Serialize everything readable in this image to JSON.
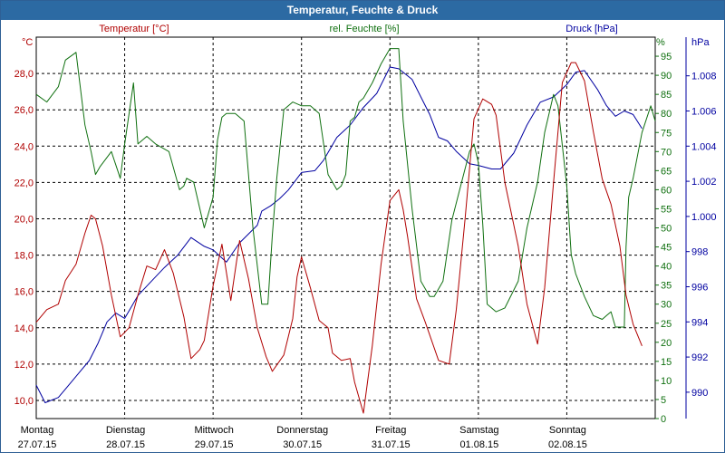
{
  "window": {
    "title": "Temperatur, Feuchte & Druck"
  },
  "colors": {
    "temperature": "#b00000",
    "humidity": "#107010",
    "pressure": "#0000a0",
    "grid": "#000000",
    "titlebar": "#2c6aa3"
  },
  "chart_data": {
    "type": "line",
    "title": "Temperatur, Feuchte & Druck",
    "grid": true,
    "days": [
      {
        "weekday": "Montag",
        "date": "27.07.15"
      },
      {
        "weekday": "Dienstag",
        "date": "28.07.15"
      },
      {
        "weekday": "Mittwoch",
        "date": "29.07.15"
      },
      {
        "weekday": "Donnerstag",
        "date": "30.07.15"
      },
      {
        "weekday": "Freitag",
        "date": "31.07.15"
      },
      {
        "weekday": "Samstag",
        "date": "01.08.15"
      },
      {
        "weekday": "Sonntag",
        "date": "02.08.15"
      }
    ],
    "x_range_days": [
      0,
      7
    ],
    "axes": {
      "temperature": {
        "label": "Temperatur [°C]",
        "unit": "°C",
        "range": [
          9,
          30
        ],
        "ticks": [
          "10,0",
          "12,0",
          "14,0",
          "16,0",
          "18,0",
          "20,0",
          "22,0",
          "24,0",
          "26,0",
          "28,0"
        ]
      },
      "humidity": {
        "label": "rel. Feuchte [%]",
        "unit": "%",
        "range": [
          0,
          100
        ],
        "ticks": [
          "0",
          "5",
          "10",
          "15",
          "20",
          "25",
          "30",
          "35",
          "40",
          "45",
          "50",
          "55",
          "60",
          "65",
          "70",
          "75",
          "80",
          "85",
          "90",
          "95"
        ]
      },
      "pressure": {
        "label": "Druck [hPa]",
        "unit": "hPa",
        "range": [
          988.5,
          1010.2
        ],
        "ticks": [
          "990",
          "992",
          "994",
          "996",
          "998",
          "1.000",
          "1.002",
          "1.004",
          "1.006",
          "1.008"
        ]
      }
    },
    "series": [
      {
        "name": "Temperatur [°C]",
        "axis": "temperature",
        "x": [
          0,
          0.12,
          0.25,
          0.33,
          0.45,
          0.55,
          0.62,
          0.67,
          0.75,
          0.85,
          0.95,
          1.05,
          1.15,
          1.25,
          1.35,
          1.45,
          1.55,
          1.67,
          1.75,
          1.85,
          1.9,
          2.0,
          2.1,
          2.2,
          2.3,
          2.4,
          2.5,
          2.6,
          2.67,
          2.8,
          2.9,
          2.95,
          3.0,
          3.1,
          3.2,
          3.3,
          3.35,
          3.45,
          3.55,
          3.6,
          3.7,
          3.8,
          3.9,
          4.0,
          4.1,
          4.15,
          4.2,
          4.3,
          4.4,
          4.55,
          4.67,
          4.75,
          4.85,
          4.95,
          5.05,
          5.15,
          5.2,
          5.3,
          5.45,
          5.55,
          5.67,
          5.75,
          5.85,
          5.95,
          6.05,
          6.1,
          6.2,
          6.3,
          6.4,
          6.5,
          6.6,
          6.67,
          6.75,
          6.85
        ],
        "y": [
          14.3,
          15.0,
          15.3,
          16.6,
          17.5,
          19.2,
          20.2,
          20.0,
          18.5,
          15.8,
          13.5,
          14.0,
          15.8,
          17.4,
          17.2,
          18.3,
          17.0,
          14.6,
          12.3,
          12.8,
          13.3,
          16.3,
          18.6,
          15.5,
          18.8,
          16.7,
          14.0,
          12.4,
          11.6,
          12.5,
          14.5,
          16.8,
          17.9,
          16.2,
          14.4,
          14.0,
          12.6,
          12.2,
          12.3,
          11.0,
          9.3,
          13.0,
          17.5,
          21.0,
          21.6,
          20.5,
          19.0,
          15.6,
          14.3,
          12.2,
          12.0,
          15.0,
          20.0,
          25.5,
          26.6,
          26.3,
          25.7,
          22.0,
          18.5,
          15.3,
          13.1,
          16.2,
          22.0,
          27.5,
          28.6,
          28.6,
          27.6,
          24.8,
          22.2,
          20.8,
          18.5,
          15.8,
          14.2,
          13.0
        ]
      },
      {
        "name": "rel. Feuchte [%]",
        "axis": "humidity",
        "x": [
          0,
          0.12,
          0.25,
          0.33,
          0.45,
          0.55,
          0.62,
          0.67,
          0.72,
          0.85,
          0.95,
          1.0,
          1.1,
          1.15,
          1.25,
          1.35,
          1.5,
          1.62,
          1.67,
          1.7,
          1.78,
          1.9,
          2.0,
          2.05,
          2.1,
          2.15,
          2.25,
          2.35,
          2.45,
          2.55,
          2.62,
          2.67,
          2.72,
          2.8,
          2.9,
          3.0,
          3.1,
          3.2,
          3.3,
          3.4,
          3.45,
          3.5,
          3.55,
          3.6,
          3.65,
          3.7,
          3.8,
          3.9,
          4.0,
          4.05,
          4.1,
          4.15,
          4.25,
          4.35,
          4.45,
          4.5,
          4.6,
          4.7,
          4.8,
          4.9,
          4.95,
          5.0,
          5.05,
          5.1,
          5.2,
          5.3,
          5.45,
          5.55,
          5.67,
          5.75,
          5.85,
          5.9,
          6.0,
          6.05,
          6.1,
          6.2,
          6.3,
          6.4,
          6.45,
          6.5,
          6.55,
          6.65,
          6.67,
          6.7,
          6.75,
          6.85,
          6.95,
          7.0
        ],
        "y": [
          85,
          83,
          87,
          94,
          96,
          77,
          70,
          64,
          66,
          70,
          63,
          72,
          88,
          72,
          74,
          72,
          70,
          60,
          61,
          63,
          62,
          50,
          58,
          73,
          79,
          80,
          80,
          78,
          50,
          30,
          30,
          48,
          63,
          81,
          83,
          82,
          82,
          80,
          64,
          60,
          61,
          64,
          78,
          79,
          83,
          84,
          88,
          93,
          97,
          97,
          97,
          78,
          55,
          36,
          32,
          32,
          36,
          52,
          61,
          70,
          72,
          67,
          51,
          30,
          28,
          29,
          36,
          50,
          62,
          75,
          85,
          82,
          61,
          43,
          38,
          32,
          27,
          26,
          27,
          28,
          24,
          24,
          45,
          58,
          63,
          75,
          82,
          78
        ]
      },
      {
        "name": "Druck [hPa]",
        "axis": "pressure",
        "x": [
          0,
          0.1,
          0.25,
          0.35,
          0.5,
          0.6,
          0.7,
          0.8,
          0.9,
          1.0,
          1.15,
          1.3,
          1.45,
          1.6,
          1.75,
          1.9,
          2.0,
          2.15,
          2.3,
          2.5,
          2.55,
          2.65,
          2.75,
          2.85,
          3.0,
          3.15,
          3.25,
          3.4,
          3.55,
          3.7,
          3.85,
          4.0,
          4.1,
          4.25,
          4.35,
          4.45,
          4.55,
          4.65,
          4.75,
          4.9,
          5.0,
          5.15,
          5.25,
          5.4,
          5.55,
          5.7,
          5.85,
          6.0,
          6.1,
          6.2,
          6.35,
          6.45,
          6.55,
          6.65,
          6.75,
          6.85
        ],
        "y": [
          990.4,
          989.4,
          989.7,
          990.3,
          991.2,
          991.8,
          992.8,
          994.0,
          994.5,
          994.2,
          995.5,
          996.3,
          997.1,
          997.8,
          998.8,
          998.3,
          998.1,
          997.4,
          998.5,
          999.5,
          1000.3,
          1000.6,
          1001.0,
          1001.5,
          1002.5,
          1002.6,
          1003.2,
          1004.5,
          1005.2,
          1006.2,
          1007.0,
          1008.5,
          1008.4,
          1007.8,
          1006.8,
          1005.8,
          1004.5,
          1004.3,
          1003.7,
          1003.0,
          1002.9,
          1002.7,
          1002.7,
          1003.6,
          1005.2,
          1006.5,
          1006.8,
          1007.5,
          1008.2,
          1008.3,
          1007.2,
          1006.3,
          1005.7,
          1006.0,
          1005.8,
          1005.0
        ]
      }
    ]
  }
}
